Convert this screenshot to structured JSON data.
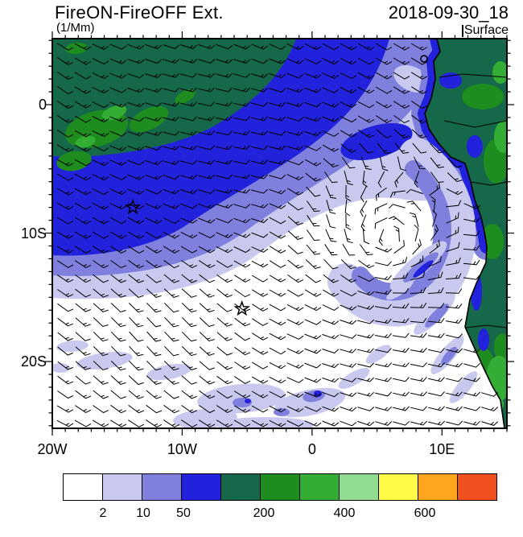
{
  "header": {
    "title": "FireON-FireOFF Ext.",
    "units": "(1/Mm)",
    "datetime": "2018-09-30_18",
    "level": "Surface"
  },
  "axes": {
    "lon_range": [
      -20,
      15
    ],
    "lat_range": [
      -25.2,
      5.14
    ],
    "x_ticks": [
      {
        "lon": -20,
        "label": "20W"
      },
      {
        "lon": -10,
        "label": "10W"
      },
      {
        "lon": 0,
        "label": "0"
      },
      {
        "lon": 10,
        "label": "10E"
      }
    ],
    "y_ticks": [
      {
        "lat": 0,
        "label": "0"
      },
      {
        "lat": -10,
        "label": "10S"
      },
      {
        "lat": -20,
        "label": "20S"
      }
    ],
    "minor_tick_interval_deg": 1
  },
  "colorbar": {
    "colors": [
      "#FFFFFF",
      "#C9C9EF",
      "#7F7FDE",
      "#2222DD",
      "#15684A",
      "#1E8C1E",
      "#33AD33",
      "#90DC90",
      "#FFFB47",
      "#FFA61E",
      "#F0501E"
    ],
    "levels": [
      2,
      10,
      50,
      100,
      200,
      300,
      400,
      500,
      600,
      700
    ],
    "labels": [
      {
        "text": "2",
        "boundary_index": 1
      },
      {
        "text": "10",
        "boundary_index": 2
      },
      {
        "text": "50",
        "boundary_index": 3
      },
      {
        "text": "200",
        "boundary_index": 5
      },
      {
        "text": "400",
        "boundary_index": 7
      },
      {
        "text": "600",
        "boundary_index": 9
      }
    ]
  },
  "markers": [
    {
      "type": "star",
      "lon": -13.8,
      "lat": -8.0
    },
    {
      "type": "star",
      "lon": -5.4,
      "lat": -15.9
    }
  ],
  "chart_data": {
    "type": "heatmap",
    "rendering": "filled contour map over the southeast Atlantic with overlaid surface wind barbs, Africa coastline and bottom labelbar",
    "title": "FireON-FireOFF Ext.",
    "variable": "Aerosol extinction difference, FireON minus FireOFF",
    "units": "1/Mm",
    "valid_time": "2018-09-30_18",
    "level": "Surface",
    "x_axis": {
      "label": "longitude",
      "ticks": [
        "20W",
        "10W",
        "0",
        "10E"
      ],
      "range_deg": [
        -20,
        15
      ]
    },
    "y_axis": {
      "label": "latitude",
      "ticks": [
        "0",
        "10S",
        "20S"
      ],
      "range_deg": [
        -25.2,
        5.1
      ]
    },
    "contour_levels": [
      2,
      10,
      50,
      100,
      200,
      300,
      400,
      500,
      600,
      700
    ],
    "labeled_levels": [
      2,
      10,
      50,
      200,
      400,
      600
    ],
    "palette": [
      "#FFFFFF",
      "#C9C9EF",
      "#7F7FDE",
      "#2222DD",
      "#15684A",
      "#1E8C1E",
      "#33AD33",
      "#90DC90",
      "#FFFB47",
      "#FFA61E",
      "#F0501E"
    ],
    "legend_position": "bottom horizontal labelbar",
    "field_regions": [
      {
        "region": "northwest offshore smoke plume, north of ~8S and west of ~5E",
        "approx_value_1_per_Mm": "50-200"
      },
      {
        "region": "green maxima patches near 17W-12W, 1S-4S",
        "approx_value_1_per_Mm": "200-400"
      },
      {
        "region": "banded gradient (2-50) sweeping from west edge northeast toward the Gabon/Angola coast",
        "approx_value_1_per_Mm": "2-50"
      },
      {
        "region": "central and southern subtropical Atlantic (large white tongue)",
        "approx_value_1_per_Mm": "< 2"
      },
      {
        "region": "anticyclonic comma/spiral arc centered near 5E, 10S",
        "approx_value_1_per_Mm": "2-50"
      },
      {
        "region": "Angola-Namibia nearshore diagonal streaks",
        "approx_value_1_per_Mm": "10-200"
      },
      {
        "region": "African continent interior (east of coastline)",
        "approx_value_1_per_Mm": "50-400"
      }
    ],
    "overlays": [
      "surface wind barbs, prevailing southeasterly trades curving around a subtropical anticyclone",
      "coastline of southwestern Africa with country borders",
      "two open star markers"
    ],
    "markers": [
      {
        "lon": -13.8,
        "lat": -8.0
      },
      {
        "lon": -5.4,
        "lat": -15.9
      }
    ]
  }
}
